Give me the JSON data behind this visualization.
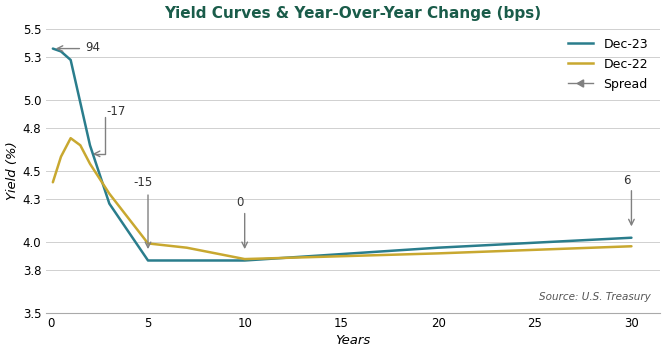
{
  "title": "Yield Curves & Year-Over-Year Change (bps)",
  "xlabel": "Years",
  "ylabel": "Yield (%)",
  "source_text": "Source: U.S. Treasury",
  "ylim": [
    3.5,
    5.5
  ],
  "xlim": [
    -0.3,
    31.5
  ],
  "yticks": [
    3.5,
    3.8,
    4.0,
    4.3,
    4.5,
    4.8,
    5.0,
    5.3,
    5.5
  ],
  "xticks": [
    0,
    5,
    10,
    15,
    20,
    25,
    30
  ],
  "dec23_x": [
    0.08,
    0.5,
    1,
    2,
    3,
    5,
    7,
    10,
    20,
    30
  ],
  "dec23_y": [
    5.36,
    5.34,
    5.28,
    4.68,
    4.27,
    3.87,
    3.87,
    3.87,
    3.96,
    4.03
  ],
  "dec22_x": [
    0.08,
    0.5,
    1,
    1.5,
    2,
    3,
    5,
    7,
    10,
    20,
    30
  ],
  "dec22_y": [
    4.42,
    4.6,
    4.73,
    4.68,
    4.55,
    4.34,
    3.99,
    3.96,
    3.88,
    3.92,
    3.97
  ],
  "dec23_color": "#2a7d8c",
  "dec22_color": "#c8a830",
  "spread_color": "#808080",
  "line_width": 1.8,
  "title_color": "#1a5c4a",
  "background_color": "#ffffff",
  "grid_color": "#d0d0d0"
}
